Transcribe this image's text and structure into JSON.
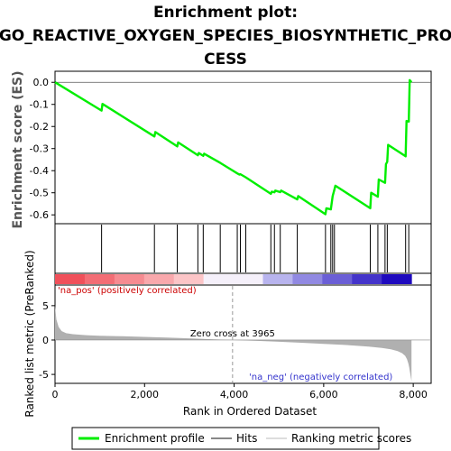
{
  "title_line1": "Enrichment plot:",
  "title_line2": "GO_REACTIVE_OXYGEN_SPECIES_BIOSYNTHETIC_PRO",
  "title_line3": "CESS",
  "colors": {
    "enrichment": "#00ee00",
    "hits": "#000000",
    "metric": "#b0b0b0",
    "pos_label": "#cc0000",
    "neg_label": "#3333cc"
  },
  "legend": {
    "enrichment_label": "Enrichment profile",
    "hits_label": "Hits",
    "metric_label": "Ranking metric scores"
  },
  "chart_data": [
    {
      "type": "line",
      "name": "enrichment-profile",
      "ylabel": "Enrichment score (ES)",
      "ylim": [
        -0.64,
        0.05
      ],
      "yticks": [
        0.0,
        -0.1,
        -0.2,
        -0.3,
        -0.4,
        -0.5,
        -0.6
      ],
      "ytick_labels": [
        "0.0",
        "-0.1",
        "-0.2",
        "-0.3",
        "-0.4",
        "-0.5",
        "-0.6"
      ],
      "xlim": [
        0,
        8400
      ],
      "grid": false,
      "x": [
        0,
        1040,
        1060,
        2220,
        2240,
        2730,
        2750,
        3190,
        3210,
        3310,
        3330,
        3690,
        4070,
        4120,
        4140,
        4260,
        4820,
        4840,
        4900,
        4920,
        5030,
        5050,
        5410,
        5430,
        6040,
        6060,
        6160,
        6180,
        6200,
        6220,
        6240,
        6260,
        7040,
        7060,
        7210,
        7230,
        7370,
        7390,
        7420,
        7440,
        7830,
        7850,
        7900,
        7920,
        7960
      ],
      "y": [
        0.0,
        -0.128,
        -0.098,
        -0.245,
        -0.225,
        -0.29,
        -0.272,
        -0.33,
        -0.32,
        -0.333,
        -0.323,
        -0.365,
        -0.412,
        -0.418,
        -0.416,
        -0.43,
        -0.505,
        -0.495,
        -0.498,
        -0.49,
        -0.497,
        -0.49,
        -0.53,
        -0.515,
        -0.597,
        -0.57,
        -0.575,
        -0.545,
        -0.515,
        -0.5,
        -0.485,
        -0.468,
        -0.57,
        -0.5,
        -0.518,
        -0.44,
        -0.455,
        -0.37,
        -0.36,
        -0.283,
        -0.335,
        -0.175,
        -0.178,
        0.01,
        0.0
      ],
      "hits": [
        1040,
        2220,
        2730,
        3190,
        3310,
        3690,
        4070,
        4140,
        4260,
        4820,
        4900,
        5030,
        5410,
        6040,
        6160,
        6200,
        6240,
        7040,
        7210,
        7370,
        7420,
        7830,
        7900
      ]
    },
    {
      "type": "area",
      "name": "ranking-metric",
      "ylabel": "Ranked list metric (PreRanked)",
      "xlabel": "Rank in Ordered Dataset",
      "ylim": [
        -6.3,
        8.0
      ],
      "yticks": [
        5,
        0,
        -5
      ],
      "ytick_labels": [
        "5",
        "0",
        "-5"
      ],
      "xlim": [
        0,
        8400
      ],
      "xticks": [
        0,
        2000,
        4000,
        6000,
        8000
      ],
      "xtick_labels": [
        "0",
        "2,000",
        "4,000",
        "6,000",
        "8,000"
      ],
      "zero_cross": 3965,
      "zero_cross_label": "Zero cross at 3965",
      "pos_label": "'na_pos' (positively correlated)",
      "neg_label": "'na_neg' (negatively correlated)",
      "x": [
        0,
        30,
        80,
        150,
        250,
        400,
        700,
        1000,
        1500,
        2000,
        2500,
        3000,
        3500,
        3965,
        4500,
        5000,
        5500,
        6000,
        6500,
        7000,
        7300,
        7500,
        7650,
        7750,
        7820,
        7860,
        7890,
        7910,
        7930,
        7950,
        7960
      ],
      "values": [
        5.0,
        3.0,
        1.9,
        1.3,
        1.0,
        0.85,
        0.7,
        0.62,
        0.55,
        0.45,
        0.35,
        0.25,
        0.12,
        0.0,
        -0.12,
        -0.25,
        -0.4,
        -0.55,
        -0.72,
        -0.95,
        -1.15,
        -1.35,
        -1.6,
        -1.9,
        -2.3,
        -2.8,
        -3.4,
        -4.0,
        -4.8,
        -5.6,
        -6.0
      ]
    }
  ]
}
